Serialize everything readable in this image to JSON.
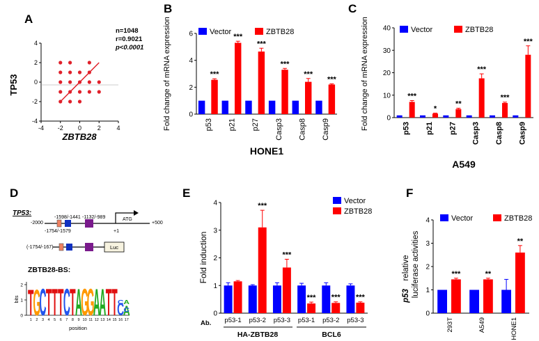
{
  "panels": {
    "A": {
      "letter": "A",
      "ylabel": "TP53",
      "xlabel": "ZBTB28",
      "stats": [
        "n=1048",
        "r=0.9021",
        "p<0.0001"
      ],
      "xticks": [
        "-4",
        "-2",
        "0",
        "2",
        "4"
      ],
      "yticks": [
        "-4",
        "-2",
        "0",
        "2",
        "4"
      ]
    },
    "B": {
      "letter": "B"
    },
    "C": {
      "letter": "C"
    },
    "D": {
      "letter": "D",
      "gene_label": "TP53:",
      "pos_start": "-2000",
      "pos_end": "+500",
      "site_labels": [
        "-1598/-1441",
        "-1132/-989",
        "-1754/-1579"
      ],
      "atg": "ATG",
      "plus1": "+1",
      "construct_range": "(-1754/-167)",
      "luc": "Luc",
      "motif_title": "ZBTB28-BS:",
      "motif_ylabel": "bits",
      "motif_xlabel": "position",
      "motif_yticks": [
        "0",
        "1",
        "2"
      ],
      "motif_positions": [
        "1",
        "2",
        "3",
        "4",
        "5",
        "6",
        "7",
        "8",
        "9",
        "10",
        "11",
        "12",
        "13",
        "14",
        "15",
        "16",
        "17"
      ],
      "motif_letters": [
        "T",
        "G",
        "C",
        "T",
        "T",
        "T",
        "C",
        "T",
        "A",
        "G",
        "G",
        "A",
        "A",
        "T",
        "T",
        "C",
        "A"
      ],
      "motif_sub_letters": [
        "C",
        "A",
        "C"
      ]
    },
    "E": {
      "letter": "E"
    },
    "F": {
      "letter": "F"
    }
  },
  "colors": {
    "vector": "#0000ff",
    "zbtb28": "#ff0000",
    "scatter": "#e0202a",
    "axis": "#000000"
  },
  "chart_data": [
    {
      "id": "A",
      "type": "scatter",
      "xlabel": "ZBTB28",
      "ylabel": "TP53",
      "xlim": [
        -4,
        4
      ],
      "ylim": [
        -4,
        4
      ],
      "points": [
        [
          -2,
          2
        ],
        [
          -1,
          2
        ],
        [
          1,
          2
        ],
        [
          -2,
          1
        ],
        [
          -1,
          1
        ],
        [
          0,
          1
        ],
        [
          1,
          1
        ],
        [
          -2,
          0
        ],
        [
          -1,
          0
        ],
        [
          0,
          0
        ],
        [
          1,
          0
        ],
        [
          2,
          0
        ],
        [
          -2,
          -1
        ],
        [
          -1,
          -1
        ],
        [
          0,
          -1
        ],
        [
          1,
          -1
        ],
        [
          2,
          -1
        ],
        [
          -2,
          -2
        ],
        [
          -1,
          -2
        ],
        [
          0,
          -2
        ]
      ],
      "fit_line": [
        [
          -2,
          -2
        ],
        [
          2,
          2
        ]
      ]
    },
    {
      "id": "B",
      "type": "bar",
      "title": "HONE1",
      "ylabel": "Fold change of mRNA expression",
      "ylim": [
        0,
        6
      ],
      "yticks": [
        "0",
        "2",
        "4",
        "6"
      ],
      "categories": [
        "p53",
        "p21",
        "p27",
        "Casp3",
        "Casp8",
        "Casp9"
      ],
      "legend": [
        "Vector",
        "ZBTB28"
      ],
      "series": [
        {
          "name": "Vector",
          "values": [
            1,
            1,
            1,
            1,
            1,
            1
          ],
          "errors": [
            0,
            0,
            0,
            0,
            0,
            0
          ]
        },
        {
          "name": "ZBTB28",
          "values": [
            2.55,
            5.3,
            4.65,
            3.3,
            2.4,
            2.2
          ],
          "errors": [
            0.08,
            0.12,
            0.25,
            0.1,
            0.25,
            0.05
          ]
        }
      ],
      "significance": [
        "***",
        "***",
        "***",
        "***",
        "***",
        "***"
      ]
    },
    {
      "id": "C",
      "type": "bar",
      "title": "A549",
      "ylabel": "Fold change of mRNA expression",
      "ylim": [
        0,
        40
      ],
      "yticks": [
        "0",
        "10",
        "20",
        "30",
        "40"
      ],
      "categories": [
        "p53",
        "p21",
        "p27",
        "Casp3",
        "Casp8",
        "Casp9"
      ],
      "legend": [
        "Vector",
        "ZBTB28"
      ],
      "series": [
        {
          "name": "Vector",
          "values": [
            1,
            1,
            1,
            1,
            1,
            1
          ],
          "errors": [
            0,
            0,
            0,
            0,
            0,
            0
          ]
        },
        {
          "name": "ZBTB28",
          "values": [
            7,
            1.8,
            3.8,
            17.5,
            6.5,
            28
          ],
          "errors": [
            0.6,
            0.2,
            0.4,
            2.0,
            0.4,
            4.0
          ]
        }
      ],
      "significance": [
        "***",
        "*",
        "**",
        "***",
        "***",
        "***"
      ]
    },
    {
      "id": "E",
      "type": "bar",
      "ylabel": "Fold induction",
      "ylim": [
        0,
        4
      ],
      "yticks": [
        "0",
        "1",
        "2",
        "3",
        "4"
      ],
      "categories": [
        "p53-1",
        "p53-2",
        "p53-3",
        "p53-1",
        "p53-2",
        "p53-3"
      ],
      "groups": [
        "HA-ZBTB28",
        "BCL6"
      ],
      "ab_label": "Ab.",
      "legend": [
        "Vector",
        "ZBTB28"
      ],
      "series": [
        {
          "name": "Vector",
          "values": [
            1,
            1,
            1,
            1,
            1,
            1
          ],
          "errors": [
            0.1,
            0.03,
            0.1,
            0.08,
            0.1,
            0.06
          ]
        },
        {
          "name": "ZBTB28",
          "values": [
            1.15,
            3.1,
            1.65,
            0.35,
            0.37,
            0.38
          ],
          "errors": [
            0.03,
            0.62,
            0.3,
            0.05,
            0.04,
            0.03
          ]
        }
      ],
      "significance": [
        "",
        "***",
        "***",
        "***",
        "***",
        "***"
      ]
    },
    {
      "id": "F",
      "type": "bar",
      "ylabel": "p53 relative luciferase activities",
      "ylabel_italic": "p53",
      "ylabel_rest": "relative",
      "ylabel_line2": "luciferase activities",
      "ylim": [
        0,
        4
      ],
      "yticks": [
        "0",
        "1",
        "2",
        "3",
        "4"
      ],
      "categories": [
        "293T",
        "A549",
        "HONE1"
      ],
      "legend": [
        "Vector",
        "ZBTB28"
      ],
      "series": [
        {
          "name": "Vector",
          "values": [
            1,
            1,
            1
          ],
          "errors": [
            0,
            0,
            0.45
          ]
        },
        {
          "name": "ZBTB28",
          "values": [
            1.45,
            1.45,
            2.6
          ],
          "errors": [
            0.05,
            0.05,
            0.3
          ]
        }
      ],
      "significance": [
        "***",
        "**",
        "**"
      ]
    }
  ]
}
